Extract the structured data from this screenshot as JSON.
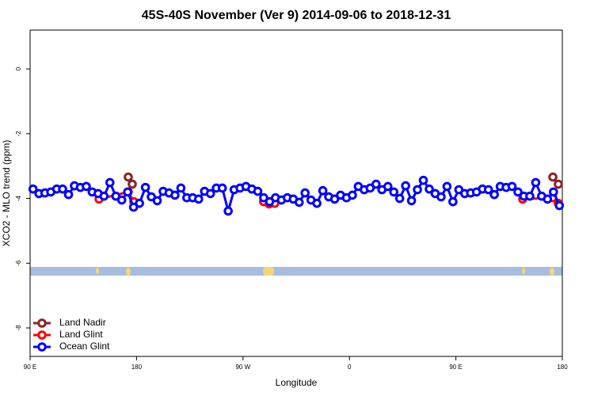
{
  "chart_data": {
    "type": "line",
    "title": "45S-40S November (Ver 9)   2014-09-06 to 2018-12-31",
    "x_label": "Longitude",
    "y_label": "XCO2 - MLO trend (ppm)",
    "xlim": [
      90,
      540
    ],
    "ylim": [
      -8.88,
      1.2
    ],
    "xticks": [
      {
        "value": 90,
        "label": "90 E"
      },
      {
        "value": 180,
        "label": "180"
      },
      {
        "value": 270,
        "label": "90 W"
      },
      {
        "value": 360,
        "label": "0"
      },
      {
        "value": 450,
        "label": "90 E"
      },
      {
        "value": 540,
        "label": "180"
      }
    ],
    "yticks": [
      0,
      -2,
      -4,
      -6,
      -8
    ],
    "legend": "bottom-left",
    "series": [
      {
        "name": "Land Nadir",
        "color": "#8b2323",
        "x": [
          173.0,
          176.4,
          350,
          532.0,
          536.6
        ],
        "values": [
          -3.34,
          -3.56,
          null,
          -3.34,
          -3.56
        ]
      },
      {
        "name": "Land Glint",
        "color": "#ff0000",
        "x": [
          148.3,
          173.0,
          177.7,
          230,
          287.5,
          292.2,
          296.9,
          400,
          506.5,
          532.0,
          536.6
        ],
        "values": [
          -4.02,
          -3.8,
          -4.1,
          null,
          -4.1,
          -4.17,
          -4.15,
          null,
          -4.02,
          -3.98,
          -4.15
        ]
      },
      {
        "name": "Ocean Glint",
        "color": "#0000ff",
        "x": [
          92.5,
          97.5,
          102.5,
          107.5,
          112.5,
          117.5,
          122.5,
          127.5,
          132.5,
          137.5,
          142.5,
          147.5,
          152.5,
          157.5,
          162.5,
          167.5,
          172.5,
          177.5,
          182.5,
          187.5,
          192.5,
          197.5,
          202.5,
          207.5,
          212.5,
          217.5,
          222.5,
          227.5,
          232.5,
          237.5,
          242.5,
          247.5,
          252.5,
          257.5,
          262.5,
          267.5,
          272.5,
          277.5,
          282.5,
          287.5,
          292.5,
          297.5,
          302.5,
          307.5,
          312.5,
          317.5,
          322.5,
          327.5,
          332.5,
          337.5,
          342.5,
          347.5,
          352.5,
          357.5,
          362.5,
          367.5,
          372.5,
          377.5,
          382.5,
          387.5,
          392.5,
          397.5,
          402.5,
          407.5,
          412.5,
          417.5,
          422.5,
          427.5,
          432.5,
          437.5,
          442.5,
          447.5,
          452.5,
          457.5,
          462.5,
          467.5,
          472.5,
          477.5,
          482.5,
          487.5,
          492.5,
          497.5,
          502.5,
          507.5,
          512.5,
          517.5,
          522.5,
          527.5,
          532.5,
          537.5
        ],
        "values": [
          -3.71,
          -3.85,
          -3.83,
          -3.8,
          -3.71,
          -3.71,
          -3.88,
          -3.61,
          -3.66,
          -3.63,
          -3.8,
          -3.85,
          -3.93,
          -3.51,
          -3.93,
          -4.05,
          -3.8,
          -4.27,
          -4.15,
          -3.66,
          -3.95,
          -4.07,
          -3.78,
          -3.83,
          -3.9,
          -3.68,
          -3.98,
          -3.98,
          -4.02,
          -3.78,
          -3.85,
          -3.68,
          -3.68,
          -4.39,
          -3.73,
          -3.68,
          -3.63,
          -3.71,
          -3.78,
          -3.98,
          -4.1,
          -3.98,
          -4.05,
          -3.98,
          -4.02,
          -4.12,
          -3.83,
          -4.05,
          -4.15,
          -3.76,
          -3.95,
          -4.02,
          -3.9,
          -3.98,
          -3.9,
          -3.63,
          -3.73,
          -3.68,
          -3.56,
          -3.73,
          -3.63,
          -3.8,
          -4.0,
          -3.61,
          -4.07,
          -3.73,
          -3.44,
          -3.71,
          -3.85,
          -3.95,
          -3.63,
          -4.1,
          -3.73,
          -3.85,
          -3.83,
          -3.8,
          -3.71,
          -3.73,
          -3.88,
          -3.63,
          -3.66,
          -3.63,
          -3.8,
          -3.93,
          -3.93,
          -3.51,
          -3.93,
          -4.02,
          -3.8,
          -4.22
        ]
      }
    ]
  }
}
